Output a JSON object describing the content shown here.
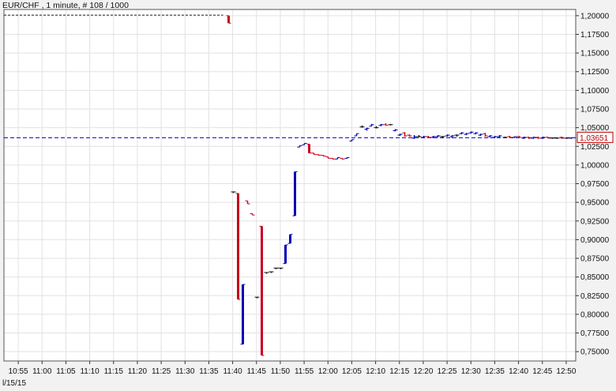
{
  "title": "EUR/CHF , 1 minute, # 108 / 1000",
  "date_label": "l/15/15",
  "colors": {
    "background": "#f2f2f2",
    "plot_bg": "#ffffff",
    "grid": "#e2e2e2",
    "up": "#0000b4",
    "down": "#c8001e",
    "flat": "#111111",
    "current_line": "#0000c8",
    "price_tag": "#c00000"
  },
  "chart_data": {
    "type": "bar",
    "title": "EUR/CHF , 1 minute, # 108 / 1000",
    "xlabel": "",
    "ylabel": "",
    "ylim": [
      0.7375,
      1.2083
    ],
    "xlim": [
      "10:52",
      "12:52"
    ],
    "grid": true,
    "current_price": "1,03651",
    "current_price_value": 1.03651,
    "y_ticks": [
      {
        "value": 1.2,
        "label": "1,20000"
      },
      {
        "value": 1.175,
        "label": "1,17500"
      },
      {
        "value": 1.15,
        "label": "1,15000"
      },
      {
        "value": 1.125,
        "label": "1,12500"
      },
      {
        "value": 1.1,
        "label": "1,10000"
      },
      {
        "value": 1.075,
        "label": "1,07500"
      },
      {
        "value": 1.05,
        "label": "1,05000"
      },
      {
        "value": 1.025,
        "label": "1,02500"
      },
      {
        "value": 1.0,
        "label": "1,00000"
      },
      {
        "value": 0.975,
        "label": "0,97500"
      },
      {
        "value": 0.95,
        "label": "0,95000"
      },
      {
        "value": 0.925,
        "label": "0,92500"
      },
      {
        "value": 0.9,
        "label": "0,90000"
      },
      {
        "value": 0.875,
        "label": "0,87500"
      },
      {
        "value": 0.85,
        "label": "0,85000"
      },
      {
        "value": 0.825,
        "label": "0,82500"
      },
      {
        "value": 0.8,
        "label": "0,80000"
      },
      {
        "value": 0.775,
        "label": "0,77500"
      },
      {
        "value": 0.75,
        "label": "0,75000"
      }
    ],
    "x_ticks": [
      {
        "time": "10:55",
        "label": "10:55"
      },
      {
        "time": "11:00",
        "label": "11:00"
      },
      {
        "time": "11:05",
        "label": "11:05"
      },
      {
        "time": "11:10",
        "label": "11:10"
      },
      {
        "time": "11:15",
        "label": "11:15"
      },
      {
        "time": "11:20",
        "label": "11:20"
      },
      {
        "time": "11:25",
        "label": "11:25"
      },
      {
        "time": "11:30",
        "label": "11:30"
      },
      {
        "time": "11:35",
        "label": "11:35"
      },
      {
        "time": "11:40",
        "label": "11:40"
      },
      {
        "time": "11:45",
        "label": "11:45"
      },
      {
        "time": "11:50",
        "label": "11:50"
      },
      {
        "time": "11:55",
        "label": "11:55"
      },
      {
        "time": "12:00",
        "label": "12:00"
      },
      {
        "time": "12:05",
        "label": "12:05"
      },
      {
        "time": "12:10",
        "label": "12:10"
      },
      {
        "time": "12:15",
        "label": "12:15"
      },
      {
        "time": "12:20",
        "label": "12:20"
      },
      {
        "time": "12:25",
        "label": "12:25"
      },
      {
        "time": "12:30",
        "label": "12:30"
      },
      {
        "time": "12:35",
        "label": "12:35"
      },
      {
        "time": "12:40",
        "label": "12:40"
      },
      {
        "time": "12:45",
        "label": "12:45"
      },
      {
        "time": "12:50",
        "label": "12:50"
      }
    ],
    "pre_open_line": {
      "from": "10:52",
      "to": "11:38",
      "value": 1.2008
    },
    "bars": [
      {
        "t": "11:39",
        "o": 1.2,
        "h": 1.2,
        "l": 1.19,
        "c": 1.19
      },
      {
        "t": "11:40",
        "o": 0.964,
        "h": 0.964,
        "l": 0.964,
        "c": 0.964
      },
      {
        "t": "11:41",
        "o": 0.962,
        "h": 0.962,
        "l": 0.82,
        "c": 0.82
      },
      {
        "t": "11:42",
        "o": 0.76,
        "h": 0.84,
        "l": 0.76,
        "c": 0.84
      },
      {
        "t": "11:43",
        "o": 0.952,
        "h": 0.952,
        "l": 0.948,
        "c": 0.948
      },
      {
        "t": "11:44",
        "o": 0.935,
        "h": 0.935,
        "l": 0.933,
        "c": 0.933
      },
      {
        "t": "11:45",
        "o": 0.823,
        "h": 0.823,
        "l": 0.823,
        "c": 0.823
      },
      {
        "t": "11:46",
        "o": 0.918,
        "h": 0.918,
        "l": 0.745,
        "c": 0.745
      },
      {
        "t": "11:47",
        "o": 0.856,
        "h": 0.856,
        "l": 0.856,
        "c": 0.856
      },
      {
        "t": "11:48",
        "o": 0.857,
        "h": 0.857,
        "l": 0.857,
        "c": 0.857
      },
      {
        "t": "11:49",
        "o": 0.862,
        "h": 0.862,
        "l": 0.862,
        "c": 0.862
      },
      {
        "t": "11:50",
        "o": 0.862,
        "h": 0.862,
        "l": 0.862,
        "c": 0.862
      },
      {
        "t": "11:51",
        "o": 0.868,
        "h": 0.893,
        "l": 0.868,
        "c": 0.893
      },
      {
        "t": "11:52",
        "o": 0.895,
        "h": 0.907,
        "l": 0.895,
        "c": 0.907
      },
      {
        "t": "11:53",
        "o": 0.932,
        "h": 0.991,
        "l": 0.932,
        "c": 0.991
      },
      {
        "t": "11:54",
        "o": 1.024,
        "h": 1.026,
        "l": 1.024,
        "c": 1.026
      },
      {
        "t": "11:55",
        "o": 1.027,
        "h": 1.029,
        "l": 1.027,
        "c": 1.029
      },
      {
        "t": "11:56",
        "o": 1.028,
        "h": 1.028,
        "l": 1.016,
        "c": 1.016
      },
      {
        "t": "11:57",
        "o": 1.016,
        "h": 1.016,
        "l": 1.014,
        "c": 1.014
      },
      {
        "t": "11:58",
        "o": 1.014,
        "h": 1.014,
        "l": 1.013,
        "c": 1.013
      },
      {
        "t": "11:59",
        "o": 1.013,
        "h": 1.013,
        "l": 1.012,
        "c": 1.012
      },
      {
        "t": "12:00",
        "o": 1.011,
        "h": 1.011,
        "l": 1.009,
        "c": 1.009
      },
      {
        "t": "12:01",
        "o": 1.009,
        "h": 1.009,
        "l": 1.008,
        "c": 1.008
      },
      {
        "t": "12:02",
        "o": 1.008,
        "h": 1.01,
        "l": 1.008,
        "c": 1.01
      },
      {
        "t": "12:03",
        "o": 1.009,
        "h": 1.009,
        "l": 1.008,
        "c": 1.008
      },
      {
        "t": "12:04",
        "o": 1.009,
        "h": 1.01,
        "l": 1.009,
        "c": 1.01
      },
      {
        "t": "12:05",
        "o": 1.032,
        "h": 1.034,
        "l": 1.032,
        "c": 1.034
      },
      {
        "t": "12:06",
        "o": 1.039,
        "h": 1.042,
        "l": 1.039,
        "c": 1.042
      },
      {
        "t": "12:07",
        "o": 1.051,
        "h": 1.053,
        "l": 1.05,
        "c": 1.051
      },
      {
        "t": "12:08",
        "o": 1.048,
        "h": 1.05,
        "l": 1.046,
        "c": 1.049
      },
      {
        "t": "12:09",
        "o": 1.052,
        "h": 1.055,
        "l": 1.052,
        "c": 1.054
      },
      {
        "t": "12:10",
        "o": 1.05,
        "h": 1.052,
        "l": 1.049,
        "c": 1.05
      },
      {
        "t": "12:11",
        "o": 1.053,
        "h": 1.055,
        "l": 1.052,
        "c": 1.054
      },
      {
        "t": "12:12",
        "o": 1.054,
        "h": 1.056,
        "l": 1.053,
        "c": 1.053
      },
      {
        "t": "12:13",
        "o": 1.054,
        "h": 1.055,
        "l": 1.053,
        "c": 1.054
      },
      {
        "t": "12:14",
        "o": 1.046,
        "h": 1.048,
        "l": 1.045,
        "c": 1.047
      },
      {
        "t": "12:15",
        "o": 1.04,
        "h": 1.042,
        "l": 1.039,
        "c": 1.041
      },
      {
        "t": "12:16",
        "o": 1.043,
        "h": 1.044,
        "l": 1.038,
        "c": 1.039
      },
      {
        "t": "12:17",
        "o": 1.04,
        "h": 1.041,
        "l": 1.038,
        "c": 1.039
      },
      {
        "t": "12:18",
        "o": 1.036,
        "h": 1.04,
        "l": 1.035,
        "c": 1.038
      },
      {
        "t": "12:19",
        "o": 1.038,
        "h": 1.04,
        "l": 1.037,
        "c": 1.038
      },
      {
        "t": "12:20",
        "o": 1.037,
        "h": 1.039,
        "l": 1.036,
        "c": 1.038
      },
      {
        "t": "12:21",
        "o": 1.038,
        "h": 1.039,
        "l": 1.036,
        "c": 1.037
      },
      {
        "t": "12:22",
        "o": 1.037,
        "h": 1.039,
        "l": 1.036,
        "c": 1.038
      },
      {
        "t": "12:23",
        "o": 1.038,
        "h": 1.04,
        "l": 1.037,
        "c": 1.039
      },
      {
        "t": "12:24",
        "o": 1.038,
        "h": 1.039,
        "l": 1.036,
        "c": 1.038
      },
      {
        "t": "12:25",
        "o": 1.039,
        "h": 1.041,
        "l": 1.038,
        "c": 1.04
      },
      {
        "t": "12:26",
        "o": 1.038,
        "h": 1.04,
        "l": 1.036,
        "c": 1.039
      },
      {
        "t": "12:27",
        "o": 1.04,
        "h": 1.041,
        "l": 1.038,
        "c": 1.04
      },
      {
        "t": "12:28",
        "o": 1.042,
        "h": 1.044,
        "l": 1.041,
        "c": 1.043
      },
      {
        "t": "12:29",
        "o": 1.041,
        "h": 1.043,
        "l": 1.04,
        "c": 1.042
      },
      {
        "t": "12:30",
        "o": 1.043,
        "h": 1.045,
        "l": 1.042,
        "c": 1.044
      },
      {
        "t": "12:31",
        "o": 1.042,
        "h": 1.044,
        "l": 1.041,
        "c": 1.043
      },
      {
        "t": "12:32",
        "o": 1.04,
        "h": 1.042,
        "l": 1.039,
        "c": 1.041
      },
      {
        "t": "12:33",
        "o": 1.042,
        "h": 1.043,
        "l": 1.038,
        "c": 1.039
      },
      {
        "t": "12:34",
        "o": 1.038,
        "h": 1.04,
        "l": 1.037,
        "c": 1.039
      },
      {
        "t": "12:35",
        "o": 1.037,
        "h": 1.039,
        "l": 1.036,
        "c": 1.038
      },
      {
        "t": "12:36",
        "o": 1.038,
        "h": 1.04,
        "l": 1.037,
        "c": 1.039
      },
      {
        "t": "12:37",
        "o": 1.037,
        "h": 1.038,
        "l": 1.036,
        "c": 1.037
      },
      {
        "t": "12:38",
        "o": 1.038,
        "h": 1.039,
        "l": 1.036,
        "c": 1.037
      },
      {
        "t": "12:39",
        "o": 1.037,
        "h": 1.038,
        "l": 1.036,
        "c": 1.038
      },
      {
        "t": "12:40",
        "o": 1.038,
        "h": 1.039,
        "l": 1.036,
        "c": 1.037
      },
      {
        "t": "12:41",
        "o": 1.036,
        "h": 1.038,
        "l": 1.035,
        "c": 1.037
      },
      {
        "t": "12:42",
        "o": 1.037,
        "h": 1.038,
        "l": 1.035,
        "c": 1.036
      },
      {
        "t": "12:43",
        "o": 1.036,
        "h": 1.038,
        "l": 1.035,
        "c": 1.037
      },
      {
        "t": "12:44",
        "o": 1.037,
        "h": 1.038,
        "l": 1.035,
        "c": 1.036
      },
      {
        "t": "12:45",
        "o": 1.036,
        "h": 1.038,
        "l": 1.035,
        "c": 1.037
      },
      {
        "t": "12:46",
        "o": 1.037,
        "h": 1.038,
        "l": 1.036,
        "c": 1.036
      },
      {
        "t": "12:47",
        "o": 1.036,
        "h": 1.037,
        "l": 1.035,
        "c": 1.036
      },
      {
        "t": "12:48",
        "o": 1.036,
        "h": 1.037,
        "l": 1.035,
        "c": 1.036
      },
      {
        "t": "12:49",
        "o": 1.037,
        "h": 1.038,
        "l": 1.035,
        "c": 1.036
      },
      {
        "t": "12:50",
        "o": 1.036,
        "h": 1.037,
        "l": 1.035,
        "c": 1.036
      },
      {
        "t": "12:51",
        "o": 1.036,
        "h": 1.037,
        "l": 1.035,
        "c": 1.0365
      }
    ]
  }
}
